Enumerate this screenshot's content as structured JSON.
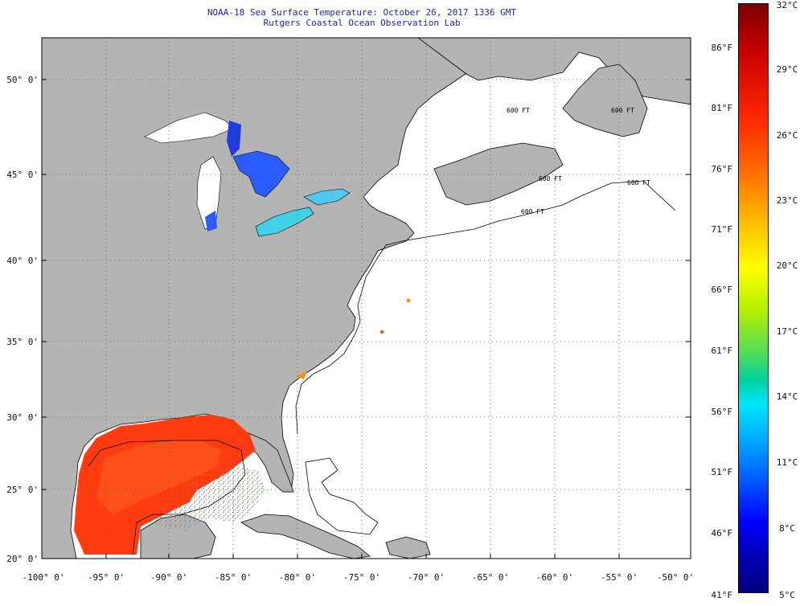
{
  "header": {
    "title_line1": "NOAA-18 Sea Surface Temperature:  October 26, 2017 1336 GMT",
    "title_line2": "Rutgers Coastal Ocean Observation Lab"
  },
  "map": {
    "lat_labels": [
      "50° 0'",
      "45° 0'",
      "40° 0'",
      "35° 0'",
      "30° 0'",
      "25° 0'",
      "20° 0'"
    ],
    "lon_labels": [
      "-100° 0'",
      "-95° 0'",
      "-90° 0'",
      "-85° 0'",
      "-80° 0'",
      "-75° 0'",
      "-70° 0'",
      "-65° 0'",
      "-60° 0'",
      "-55° 0'",
      "-50° 0'"
    ],
    "contour_labels": [
      "600 FT",
      "600 FT",
      "600 FT",
      "600 FT",
      "600 FT"
    ],
    "colors": {
      "land": "#b4b4b4",
      "ocean_no_data": "#ffffff",
      "gulf_sst": "#ff3c10",
      "gulf_warm": "#ff6020",
      "lake_cool": "#2a5cff",
      "lake_erie": "#40d0e8"
    }
  },
  "colorbar": {
    "fahrenheit_labels": [
      "86°F",
      "81°F",
      "76°F",
      "71°F",
      "66°F",
      "61°F",
      "56°F",
      "51°F",
      "46°F",
      "41°F"
    ],
    "celsius_labels": [
      "32°C",
      "29°C",
      "26°C",
      "23°C",
      "20°C",
      "17°C",
      "14°C",
      "11°C",
      "8°C",
      "5°C"
    ],
    "min_c": 5,
    "max_c": 32
  }
}
